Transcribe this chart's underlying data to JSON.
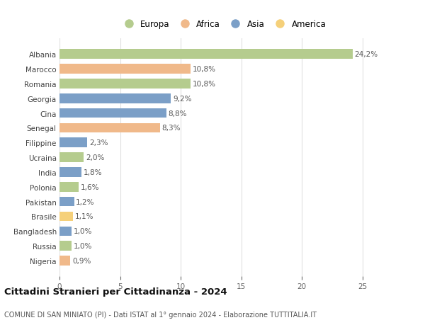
{
  "categories": [
    "Nigeria",
    "Russia",
    "Bangladesh",
    "Brasile",
    "Pakistan",
    "Polonia",
    "India",
    "Ucraina",
    "Filippine",
    "Senegal",
    "Cina",
    "Georgia",
    "Romania",
    "Marocco",
    "Albania"
  ],
  "values": [
    0.9,
    1.0,
    1.0,
    1.1,
    1.2,
    1.6,
    1.8,
    2.0,
    2.3,
    8.3,
    8.8,
    9.2,
    10.8,
    10.8,
    24.2
  ],
  "continents": [
    "Africa",
    "Europa",
    "Asia",
    "America",
    "Asia",
    "Europa",
    "Asia",
    "Europa",
    "Asia",
    "Africa",
    "Asia",
    "Asia",
    "Europa",
    "Africa",
    "Europa"
  ],
  "continent_colors": {
    "Europa": "#b5cc8e",
    "Africa": "#f0b98a",
    "Asia": "#7b9fc7",
    "America": "#f5d07a"
  },
  "legend_order": [
    "Europa",
    "Africa",
    "Asia",
    "America"
  ],
  "title": "Cittadini Stranieri per Cittadinanza - 2024",
  "subtitle": "COMUNE DI SAN MINIATO (PI) - Dati ISTAT al 1° gennaio 2024 - Elaborazione TUTTITALIA.IT",
  "xlim": [
    0,
    27
  ],
  "xticks": [
    0,
    5,
    10,
    15,
    20,
    25
  ],
  "background_color": "#ffffff",
  "grid_color": "#e0e0e0",
  "bar_height": 0.65,
  "label_fontsize": 7.5,
  "tick_fontsize": 7.5,
  "title_fontsize": 9.5,
  "subtitle_fontsize": 7.0,
  "legend_fontsize": 8.5
}
